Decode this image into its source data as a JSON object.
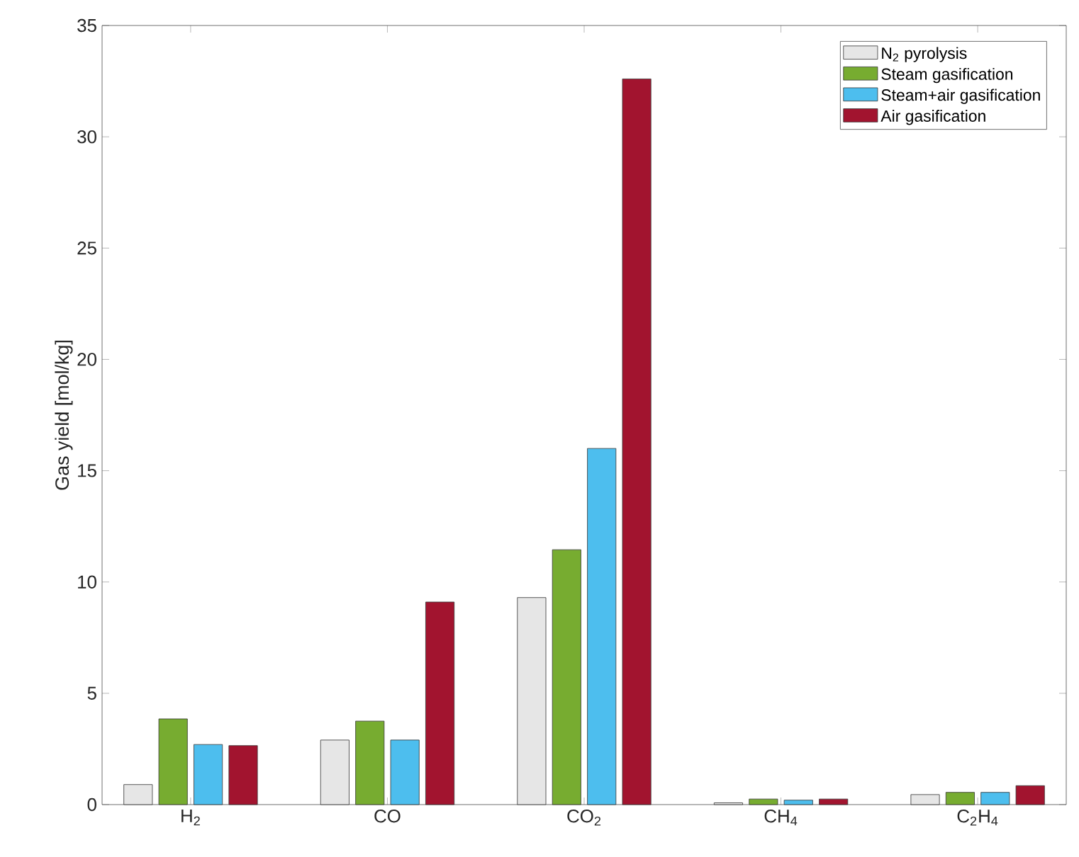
{
  "chart_data": {
    "type": "bar",
    "ylabel": "Gas yield [mol/kg]",
    "categories": [
      "H$_{2}$",
      "CO",
      "CO$_{2}$",
      "CH$_{4}$",
      "C$_{2}$H$_{4}$"
    ],
    "series": [
      {
        "name": "N$_{2}$ pyrolysis",
        "color": "#e6e6e6",
        "values": [
          0.9,
          2.9,
          9.3,
          0.08,
          0.45
        ]
      },
      {
        "name": "Steam gasification",
        "color": "#77ac30",
        "values": [
          3.85,
          3.75,
          11.45,
          0.25,
          0.55
        ]
      },
      {
        "name": "Steam+air gasification",
        "color": "#4dbeee",
        "values": [
          2.7,
          2.9,
          16.0,
          0.2,
          0.55
        ]
      },
      {
        "name": "Air gasification",
        "color": "#a2142f",
        "values": [
          2.65,
          9.1,
          32.6,
          0.25,
          0.85
        ]
      }
    ],
    "ylim": [
      0,
      35
    ],
    "yticks": [
      0,
      5,
      10,
      15,
      20,
      25,
      30,
      35
    ],
    "legend": "top right"
  }
}
